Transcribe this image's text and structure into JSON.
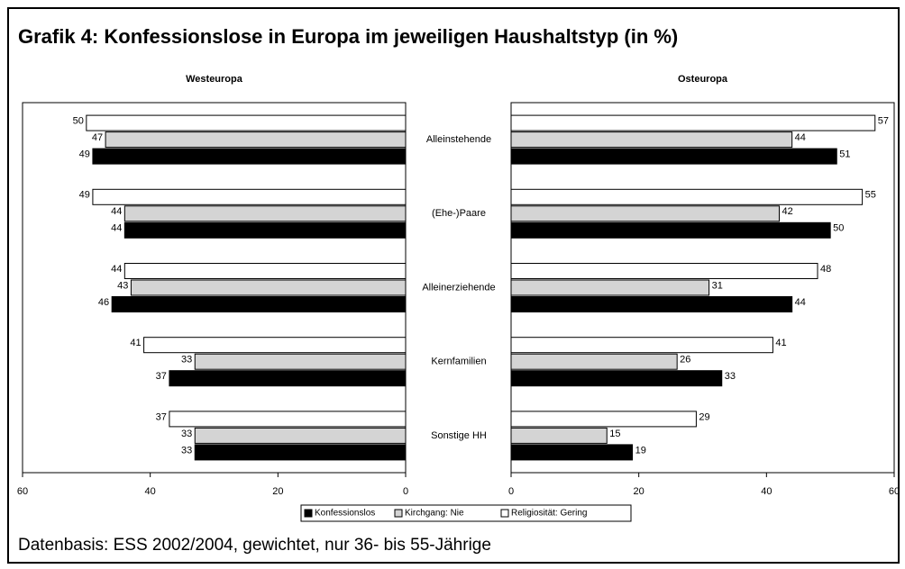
{
  "title": "Grafik 4: Konfessionslose in Europa im jeweiligen Haushaltstyp (in %)",
  "source": "Datenbasis: ESS 2002/2004, gewichtet, nur 36- bis 55-Jährige",
  "categories": [
    "Alleinstehende",
    "(Ehe-)Paare",
    "Alleinerziehende",
    "Kernfamilien",
    "Sonstige HH"
  ],
  "legend": [
    {
      "name": "Konfessionslos",
      "color": "#000000"
    },
    {
      "name": "Kirchgang: Nie",
      "color": "#d4d4d4"
    },
    {
      "name": "Religiosität: Gering",
      "color": "#ffffff"
    }
  ],
  "chart_data": [
    {
      "type": "bar",
      "subtitle": "Westeuropa",
      "xlim": [
        60,
        0
      ],
      "xticks": [
        60,
        40,
        20,
        0
      ],
      "series": [
        {
          "values": [
            49,
            44,
            46,
            37,
            33
          ]
        },
        {
          "values": [
            47,
            44,
            43,
            33,
            33
          ]
        },
        {
          "values": [
            50,
            49,
            44,
            41,
            37
          ]
        }
      ]
    },
    {
      "type": "bar",
      "subtitle": "Osteuropa",
      "xlim": [
        0,
        60
      ],
      "xticks": [
        0,
        20,
        40,
        60
      ],
      "series": [
        {
          "values": [
            51,
            50,
            44,
            33,
            19
          ]
        },
        {
          "values": [
            44,
            42,
            31,
            26,
            15
          ]
        },
        {
          "values": [
            57,
            55,
            48,
            41,
            29
          ]
        }
      ]
    }
  ]
}
